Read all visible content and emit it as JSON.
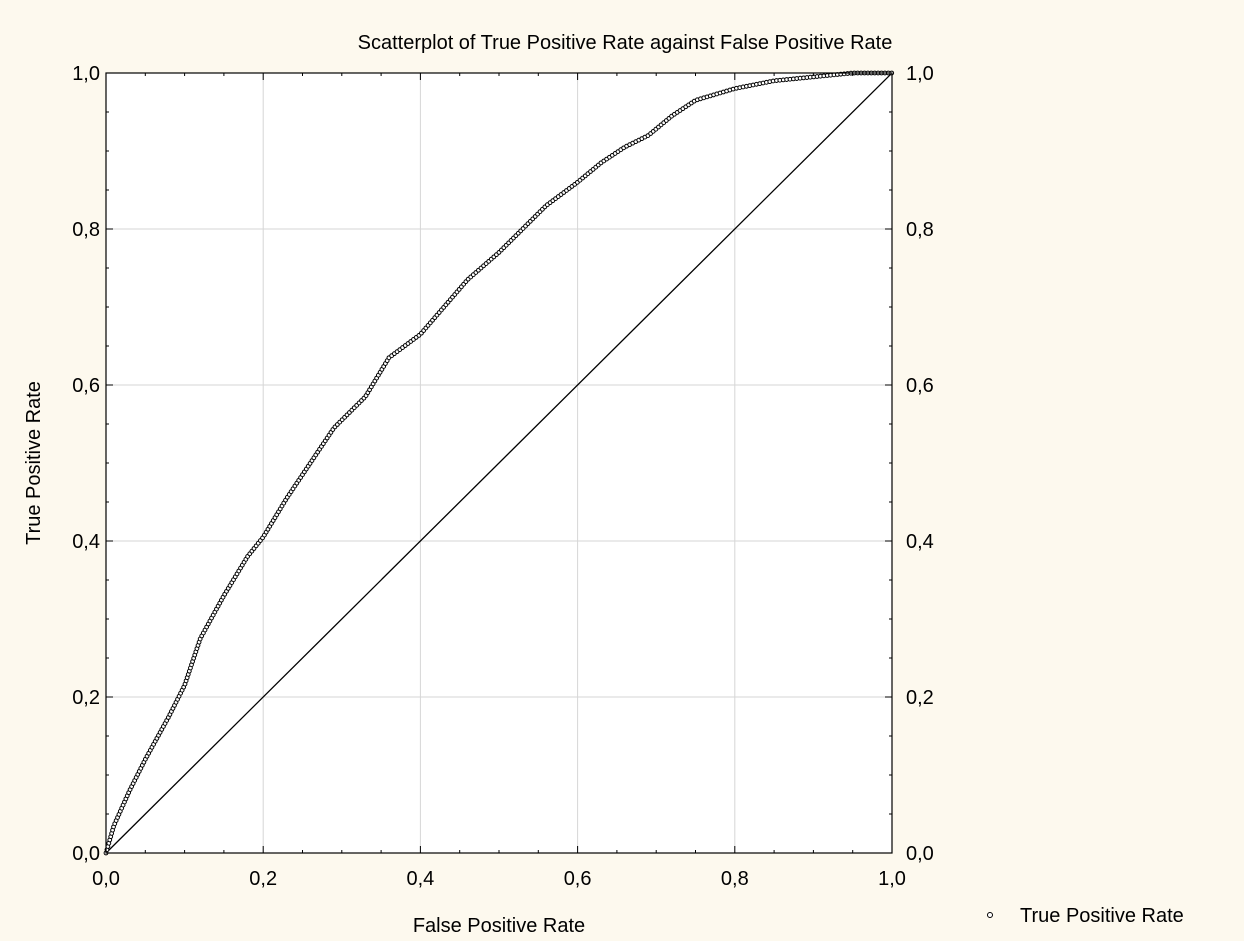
{
  "chart_data": {
    "type": "scatter",
    "title": "Scatterplot of True Positive Rate against False Positive Rate",
    "xlabel": "False Positive Rate",
    "ylabel": "True Positive Rate",
    "xlim": [
      0,
      1
    ],
    "ylim": [
      0,
      1
    ],
    "grid": true,
    "legend_position": "bottom-right",
    "x_ticks": [
      "0,0",
      "0,2",
      "0,4",
      "0,6",
      "0,8",
      "1,0"
    ],
    "y_ticks": [
      "0,0",
      "0,2",
      "0,4",
      "0,6",
      "0,8",
      "1,0"
    ],
    "reference_line": {
      "from": [
        0,
        0
      ],
      "to": [
        1,
        1
      ]
    },
    "series": [
      {
        "name": "True Positive Rate",
        "curve": [
          [
            0,
            0
          ],
          [
            0.01,
            0.035
          ],
          [
            0.03,
            0.08
          ],
          [
            0.05,
            0.12
          ],
          [
            0.08,
            0.175
          ],
          [
            0.1,
            0.215
          ],
          [
            0.12,
            0.275
          ],
          [
            0.15,
            0.33
          ],
          [
            0.18,
            0.38
          ],
          [
            0.2,
            0.405
          ],
          [
            0.23,
            0.455
          ],
          [
            0.26,
            0.5
          ],
          [
            0.29,
            0.545
          ],
          [
            0.31,
            0.565
          ],
          [
            0.33,
            0.585
          ],
          [
            0.36,
            0.635
          ],
          [
            0.4,
            0.665
          ],
          [
            0.43,
            0.7
          ],
          [
            0.46,
            0.735
          ],
          [
            0.5,
            0.77
          ],
          [
            0.53,
            0.8
          ],
          [
            0.56,
            0.83
          ],
          [
            0.6,
            0.86
          ],
          [
            0.63,
            0.885
          ],
          [
            0.66,
            0.905
          ],
          [
            0.69,
            0.92
          ],
          [
            0.72,
            0.945
          ],
          [
            0.75,
            0.965
          ],
          [
            0.8,
            0.98
          ],
          [
            0.85,
            0.99
          ],
          [
            0.9,
            0.995
          ],
          [
            0.95,
            1.0
          ],
          [
            1.0,
            1.0
          ]
        ]
      }
    ]
  },
  "colors": {
    "background": "#fdf9ee",
    "plot_area": "#ffffff",
    "grid": "#d6d6d6",
    "ink": "#000000"
  }
}
